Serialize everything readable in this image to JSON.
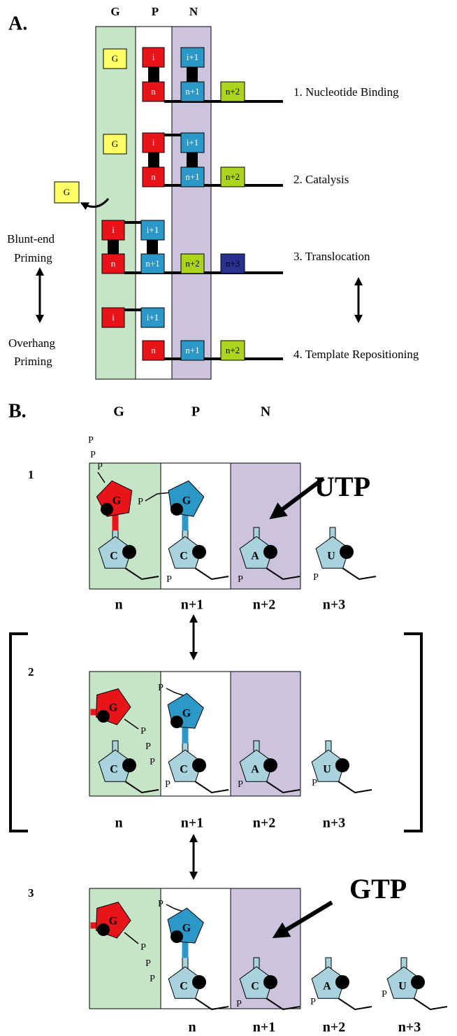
{
  "panel_a": {
    "label": "A.",
    "columns": [
      "G",
      "P",
      "N"
    ],
    "rows": [
      {
        "boxes": [
          "G",
          "i",
          "i+1",
          "n",
          "n+1",
          "n+2"
        ],
        "step": "1. Nucleotide Binding"
      },
      {
        "boxes": [
          "G",
          "i",
          "i+1",
          "n",
          "n+1",
          "n+2"
        ],
        "step": "2. Catalysis"
      },
      {
        "boxes": [
          "G",
          "i",
          "i+1",
          "n",
          "n+1",
          "n+2",
          "n+3"
        ],
        "step": "3. Translocation"
      },
      {
        "boxes": [
          "i",
          "i+1",
          "n",
          "n+1",
          "n+2"
        ],
        "step": "4. Template Repositioning"
      }
    ],
    "blunt_end": [
      "Blunt-end",
      "Priming"
    ],
    "overhang": [
      "Overhang",
      "Priming"
    ]
  },
  "panel_b": {
    "label": "B.",
    "columns": [
      "G",
      "P",
      "N"
    ],
    "rows": [
      {
        "number": "1",
        "incoming": "UTP",
        "sugars": [
          "G",
          "G"
        ],
        "bases": [
          "C",
          "C",
          "A",
          "U"
        ],
        "phosphates": [
          "P",
          "P",
          "P",
          "P",
          "P",
          "P",
          "P"
        ],
        "positions": [
          "n",
          "n+1",
          "n+2",
          "n+3"
        ]
      },
      {
        "number": "2",
        "sugars": [
          "G",
          "G"
        ],
        "bases": [
          "C",
          "C",
          "A",
          "U"
        ],
        "phosphates": [
          "P",
          "P",
          "P",
          "P",
          "P",
          "P",
          "P"
        ],
        "positions": [
          "n",
          "n+1",
          "n+2",
          "n+3"
        ]
      },
      {
        "number": "3",
        "incoming": "GTP",
        "sugars": [
          "G",
          "G"
        ],
        "bases": [
          "C",
          "C",
          "A",
          "U"
        ],
        "phosphates": [
          "P",
          "P",
          "P",
          "P",
          "P",
          "P",
          "P"
        ],
        "positions": [
          "n",
          "n+1",
          "n+2",
          "n+3"
        ]
      }
    ]
  }
}
